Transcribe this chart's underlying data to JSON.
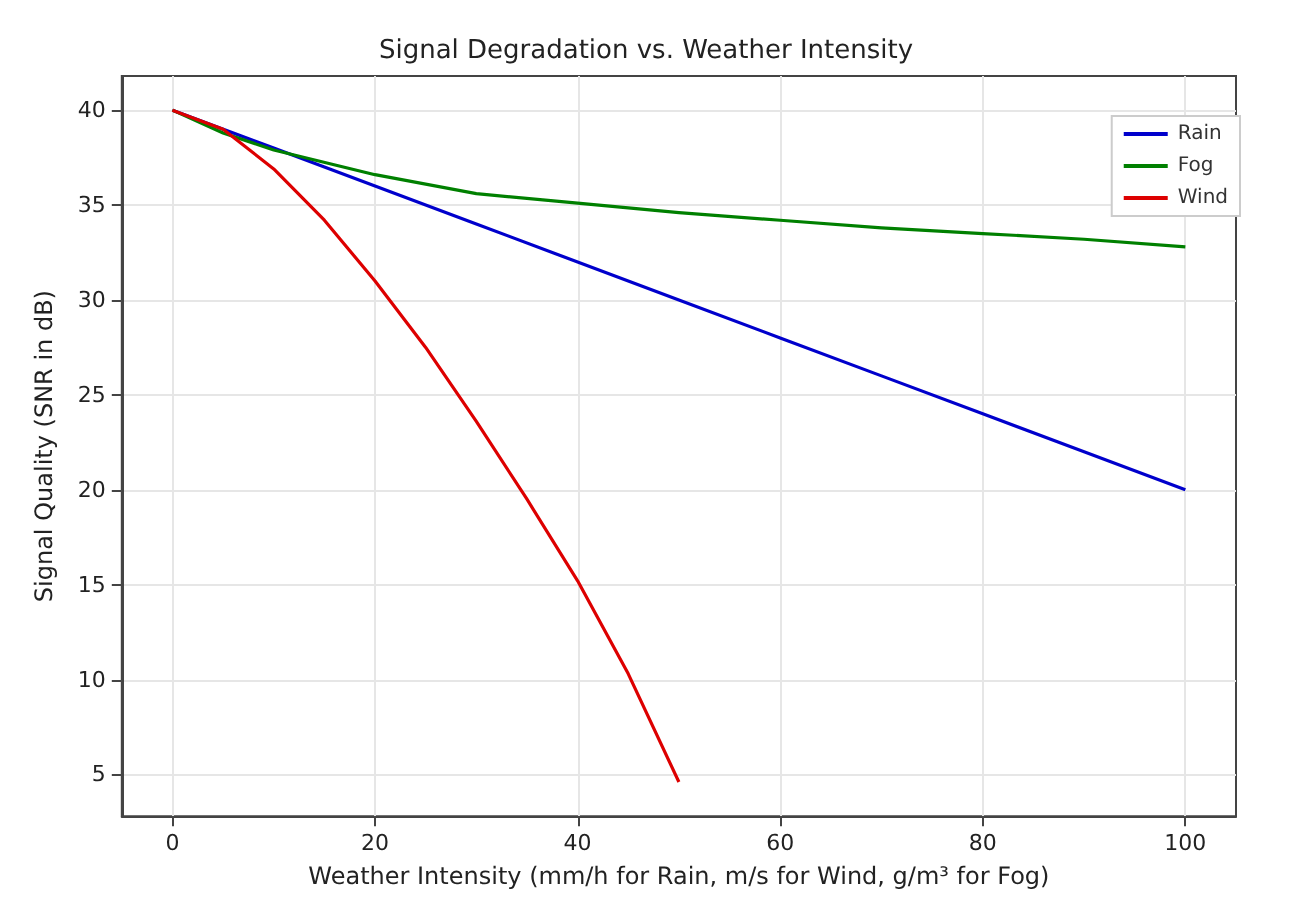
{
  "chart_data": {
    "type": "line",
    "title": "Signal Degradation vs. Weather Intensity",
    "xlabel": "Weather Intensity (mm/h for Rain, m/s for Wind, g/m³ for Fog)",
    "ylabel": "Signal Quality (SNR in dB)",
    "series": [
      {
        "name": "Rain",
        "color": "#0000cc",
        "x": [
          0,
          10,
          20,
          30,
          40,
          50,
          60,
          70,
          80,
          90,
          100
        ],
        "values": [
          40,
          38,
          36,
          34,
          32,
          30,
          28,
          26,
          24,
          22,
          20
        ]
      },
      {
        "name": "Fog",
        "color": "#008000",
        "x": [
          0,
          5,
          10,
          20,
          30,
          40,
          50,
          60,
          70,
          80,
          90,
          100
        ],
        "values": [
          40,
          38.8,
          37.9,
          36.6,
          35.6,
          35.1,
          34.6,
          34.2,
          33.8,
          33.5,
          33.2,
          32.8
        ]
      },
      {
        "name": "Wind",
        "color": "#dd0000",
        "x": [
          0,
          5,
          10,
          15,
          20,
          25,
          30,
          35,
          40,
          45,
          50
        ],
        "values": [
          40,
          39,
          36.9,
          34.2,
          31,
          27.5,
          23.6,
          19.5,
          15.2,
          10.3,
          4.6
        ]
      }
    ],
    "xlim": [
      -5,
      105
    ],
    "ylim": [
      2.8,
      41.8
    ],
    "xticks": [
      0,
      20,
      40,
      60,
      80,
      100
    ],
    "yticks": [
      5,
      10,
      15,
      20,
      25,
      30,
      35,
      40
    ],
    "grid": true,
    "legend": "top right",
    "marker": "none",
    "line_style": "solid"
  }
}
